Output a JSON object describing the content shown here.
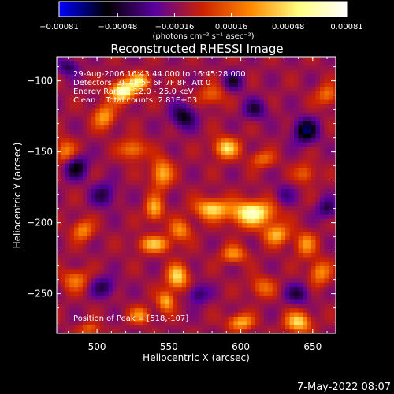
{
  "chart_data": {
    "type": "heatmap",
    "title": "Reconstructed RHESSI Image",
    "xlabel": "Heliocentric X (arcsec)",
    "ylabel": "Heliocentric Y (arcsec)",
    "xlim": [
      472,
      666
    ],
    "ylim": [
      -278,
      -83
    ],
    "x_ticks": [
      500,
      550,
      600,
      650
    ],
    "x_tick_labels": [
      "500",
      "550",
      "600",
      "650"
    ],
    "y_ticks": [
      -100,
      -150,
      -200,
      -250
    ],
    "y_tick_labels": [
      "−100",
      "−150",
      "−200",
      "−250"
    ],
    "colorbar": {
      "range": [
        -0.00081,
        0.00081
      ],
      "ticks": [
        -0.00081,
        -0.00048,
        -0.00016,
        0.00016,
        0.00048,
        0.00081
      ],
      "tick_labels": [
        "−0.00081",
        "−0.00048",
        "−0.00016",
        "0.00016",
        "0.00048",
        "0.00081"
      ],
      "units_label": "(photons cm⁻² s⁻¹ asec⁻²)",
      "colormap": [
        "#0000ff",
        "#000000",
        "#5a00a0",
        "#cc2200",
        "#ff8800",
        "#ffff80",
        "#ffffff"
      ]
    },
    "annotations": [
      "29-Aug-2006 16:43:44.000 to 16:45:28.000",
      "Detectors: 3F 4F 5F 6F 7F 8F, Att 0",
      "Energy Range: 12.0 - 25.0 keV",
      "Clean    Total counts: 2.81E+03"
    ],
    "peak_label": "Position of Peak = [518,-107]",
    "peak": [
      518,
      -107
    ],
    "hotspots": [
      {
        "x": 518,
        "y": -107,
        "v": 0.00081,
        "sx": 6,
        "sy": 5
      },
      {
        "x": 530,
        "y": -100,
        "v": 0.0006,
        "sx": 5,
        "sy": 4
      },
      {
        "x": 505,
        "y": -125,
        "v": 0.00045,
        "sx": 5,
        "sy": 6
      },
      {
        "x": 525,
        "y": -148,
        "v": 0.0004,
        "sx": 6,
        "sy": 5
      },
      {
        "x": 545,
        "y": -165,
        "v": 0.0005,
        "sx": 5,
        "sy": 7
      },
      {
        "x": 540,
        "y": -190,
        "v": 0.0005,
        "sx": 4,
        "sy": 6
      },
      {
        "x": 540,
        "y": -215,
        "v": 0.0005,
        "sx": 8,
        "sy": 4
      },
      {
        "x": 558,
        "y": -205,
        "v": 0.0004,
        "sx": 5,
        "sy": 5
      },
      {
        "x": 556,
        "y": -238,
        "v": 0.0006,
        "sx": 5,
        "sy": 6
      },
      {
        "x": 548,
        "y": -255,
        "v": 0.0005,
        "sx": 4,
        "sy": 5
      },
      {
        "x": 590,
        "y": -147,
        "v": 0.0006,
        "sx": 6,
        "sy": 5
      },
      {
        "x": 615,
        "y": -155,
        "v": 0.0003,
        "sx": 6,
        "sy": 4
      },
      {
        "x": 580,
        "y": -190,
        "v": 0.0006,
        "sx": 8,
        "sy": 5
      },
      {
        "x": 608,
        "y": -193,
        "v": 0.0008,
        "sx": 10,
        "sy": 6
      },
      {
        "x": 625,
        "y": -208,
        "v": 0.0005,
        "sx": 6,
        "sy": 5
      },
      {
        "x": 645,
        "y": -215,
        "v": 0.0004,
        "sx": 5,
        "sy": 6
      },
      {
        "x": 595,
        "y": -222,
        "v": 0.0004,
        "sx": 6,
        "sy": 4
      },
      {
        "x": 615,
        "y": -245,
        "v": 0.0003,
        "sx": 6,
        "sy": 5
      },
      {
        "x": 600,
        "y": -270,
        "v": 0.0005,
        "sx": 6,
        "sy": 4
      },
      {
        "x": 640,
        "y": -270,
        "v": 0.0006,
        "sx": 6,
        "sy": 5
      },
      {
        "x": 655,
        "y": -235,
        "v": 0.0004,
        "sx": 5,
        "sy": 6
      },
      {
        "x": 490,
        "y": -205,
        "v": 0.0004,
        "sx": 5,
        "sy": 5
      },
      {
        "x": 485,
        "y": -240,
        "v": 0.00035,
        "sx": 6,
        "sy": 5
      },
      {
        "x": 478,
        "y": -150,
        "v": 0.0004,
        "sx": 5,
        "sy": 6
      },
      {
        "x": 580,
        "y": -110,
        "v": 0.0003,
        "sx": 6,
        "sy": 5
      },
      {
        "x": 645,
        "y": -165,
        "v": 0.0003,
        "sx": 5,
        "sy": 5
      },
      {
        "x": 660,
        "y": -110,
        "v": 0.00035,
        "sx": 5,
        "sy": 5
      },
      {
        "x": 495,
        "y": -275,
        "v": 0.0003,
        "sx": 5,
        "sy": 3
      },
      {
        "x": 530,
        "y": -265,
        "v": 0.0004,
        "sx": 5,
        "sy": 4
      }
    ],
    "coldspots": [
      {
        "x": 485,
        "y": -160,
        "v": -0.0004,
        "sx": 6,
        "sy": 6
      },
      {
        "x": 560,
        "y": -125,
        "v": -0.0004,
        "sx": 6,
        "sy": 6
      },
      {
        "x": 610,
        "y": -120,
        "v": -0.0003,
        "sx": 6,
        "sy": 5
      },
      {
        "x": 645,
        "y": -135,
        "v": -0.0005,
        "sx": 6,
        "sy": 6
      },
      {
        "x": 505,
        "y": -180,
        "v": -0.0003,
        "sx": 6,
        "sy": 6
      },
      {
        "x": 570,
        "y": -250,
        "v": -0.0003,
        "sx": 5,
        "sy": 5
      },
      {
        "x": 640,
        "y": -250,
        "v": -0.0003,
        "sx": 6,
        "sy": 5
      },
      {
        "x": 505,
        "y": -245,
        "v": -0.0003,
        "sx": 6,
        "sy": 5
      },
      {
        "x": 595,
        "y": -100,
        "v": -0.0003,
        "sx": 5,
        "sy": 5
      },
      {
        "x": 630,
        "y": -180,
        "v": -0.0002,
        "sx": 5,
        "sy": 5
      },
      {
        "x": 660,
        "y": -190,
        "v": -0.0003,
        "sx": 5,
        "sy": 5
      },
      {
        "x": 480,
        "y": -90,
        "v": -0.0003,
        "sx": 5,
        "sy": 4
      }
    ],
    "background": -0.00012,
    "grid": false,
    "legend": "colorbar-top"
  },
  "footer": {
    "timestamp": "7-May-2022 08:07"
  }
}
